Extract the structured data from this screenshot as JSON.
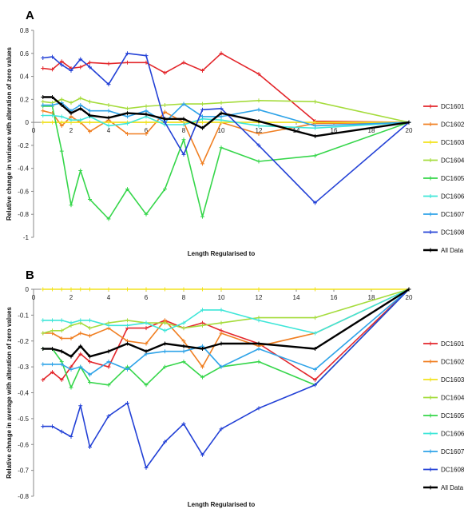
{
  "series_colors": {
    "DC1601": "#e3262b",
    "DC1602": "#f07f22",
    "DC1603": "#f2e21b",
    "DC1604": "#a5dc3c",
    "DC1605": "#35d64a",
    "DC1606": "#3ee6d8",
    "DC1607": "#2ea3e8",
    "DC1608": "#2341d6",
    "All Data": "#000000"
  },
  "chart_data": [
    {
      "panel": "A",
      "type": "line",
      "xlabel": "Length Regularised to",
      "ylabel": "Relative change in variance with alteration of zero values",
      "xlim": [
        0,
        20
      ],
      "ylim": [
        -1,
        0.8
      ],
      "xticks": [
        0,
        2,
        4,
        6,
        8,
        10,
        12,
        14,
        16,
        18,
        20
      ],
      "yticks": [
        -1,
        -0.8,
        -0.6,
        -0.4,
        -0.2,
        0,
        0.2,
        0.4,
        0.6,
        0.8
      ],
      "legend_position": "right",
      "series": [
        {
          "name": "DC1601",
          "x": [
            0.5,
            1,
            1.5,
            2,
            2.5,
            3,
            4,
            5,
            6,
            7,
            8,
            9,
            10,
            12,
            15,
            20
          ],
          "y": [
            0.47,
            0.46,
            0.53,
            0.47,
            0.48,
            0.52,
            0.51,
            0.52,
            0.52,
            0.43,
            0.52,
            0.45,
            0.6,
            0.42,
            0.01,
            0.0
          ]
        },
        {
          "name": "DC1602",
          "x": [
            0.5,
            1,
            1.5,
            2,
            2.5,
            3,
            4,
            5,
            6,
            7,
            8,
            9,
            10,
            12,
            15,
            20
          ],
          "y": [
            0.1,
            0.08,
            -0.03,
            0.05,
            0.0,
            -0.08,
            0.02,
            -0.1,
            -0.1,
            0.09,
            0.0,
            -0.36,
            0.0,
            -0.1,
            -0.01,
            0.0
          ]
        },
        {
          "name": "DC1603",
          "x": [
            0.5,
            1,
            1.5,
            2,
            2.5,
            3,
            4,
            5,
            6,
            7,
            8,
            9,
            10,
            12,
            15,
            20
          ],
          "y": [
            0.0,
            0.0,
            0.0,
            0.0,
            0.0,
            0.0,
            0.0,
            0.0,
            0.0,
            0.0,
            0.0,
            0.0,
            0.0,
            0.0,
            0.0,
            0.0
          ]
        },
        {
          "name": "DC1604",
          "x": [
            0.5,
            1,
            1.5,
            2,
            2.5,
            3,
            4,
            5,
            6,
            7,
            8,
            9,
            10,
            12,
            15,
            20
          ],
          "y": [
            0.18,
            0.17,
            0.2,
            0.17,
            0.21,
            0.18,
            0.15,
            0.12,
            0.14,
            0.15,
            0.16,
            0.16,
            0.17,
            0.19,
            0.18,
            0.0
          ]
        },
        {
          "name": "DC1605",
          "x": [
            0.5,
            1,
            1.5,
            2,
            2.5,
            3,
            4,
            5,
            6,
            7,
            8,
            9,
            10,
            12,
            15,
            20
          ],
          "y": [
            0.14,
            0.14,
            -0.25,
            -0.72,
            -0.42,
            -0.67,
            -0.84,
            -0.58,
            -0.8,
            -0.58,
            -0.15,
            -0.82,
            -0.22,
            -0.34,
            -0.29,
            0.0
          ]
        },
        {
          "name": "DC1606",
          "x": [
            0.5,
            1,
            1.5,
            2,
            2.5,
            3,
            4,
            5,
            6,
            7,
            8,
            9,
            10,
            12,
            15,
            20
          ],
          "y": [
            0.06,
            0.06,
            0.05,
            0.02,
            0.02,
            0.05,
            -0.03,
            -0.01,
            0.05,
            -0.02,
            -0.02,
            0.03,
            0.02,
            -0.03,
            -0.05,
            0.0
          ]
        },
        {
          "name": "DC1607",
          "x": [
            0.5,
            1,
            1.5,
            2,
            2.5,
            3,
            4,
            5,
            6,
            7,
            8,
            9,
            10,
            12,
            15,
            20
          ],
          "y": [
            0.15,
            0.15,
            0.17,
            0.1,
            0.15,
            0.1,
            0.1,
            0.05,
            0.1,
            0.0,
            0.16,
            0.05,
            0.05,
            0.11,
            -0.03,
            0.0
          ]
        },
        {
          "name": "DC1608",
          "x": [
            0.5,
            1,
            1.5,
            2,
            2.5,
            3,
            4,
            5,
            6,
            7,
            8,
            9,
            10,
            12,
            15,
            20
          ],
          "y": [
            0.56,
            0.57,
            0.5,
            0.45,
            0.55,
            0.48,
            0.33,
            0.6,
            0.58,
            0.0,
            -0.28,
            0.11,
            0.12,
            -0.2,
            -0.7,
            0.0
          ]
        },
        {
          "name": "All Data",
          "x": [
            0.5,
            1,
            1.5,
            2,
            2.5,
            3,
            4,
            5,
            6,
            7,
            8,
            9,
            10,
            12,
            15,
            20
          ],
          "y": [
            0.22,
            0.22,
            0.15,
            0.08,
            0.12,
            0.06,
            0.04,
            0.08,
            0.07,
            0.03,
            0.03,
            -0.05,
            0.08,
            0.01,
            -0.12,
            0.0
          ]
        }
      ]
    },
    {
      "panel": "B",
      "type": "line",
      "xlabel": "Length Regularised to",
      "ylabel": "Relative chnage in average with alteration of zero values",
      "xlim": [
        0,
        20
      ],
      "ylim": [
        -0.8,
        0
      ],
      "xticks": [
        0,
        2,
        4,
        6,
        8,
        10,
        12,
        14,
        16,
        18,
        20
      ],
      "yticks": [
        -0.8,
        -0.7,
        -0.6,
        -0.5,
        -0.4,
        -0.3,
        -0.2,
        -0.1,
        0
      ],
      "legend_position": "right",
      "series": [
        {
          "name": "DC1601",
          "x": [
            0.5,
            1,
            1.5,
            2,
            2.5,
            3,
            4,
            5,
            6,
            7,
            8,
            9,
            10,
            12,
            15,
            20
          ],
          "y": [
            -0.35,
            -0.32,
            -0.35,
            -0.3,
            -0.25,
            -0.28,
            -0.3,
            -0.15,
            -0.15,
            -0.12,
            -0.15,
            -0.13,
            -0.16,
            -0.21,
            -0.35,
            0.0
          ]
        },
        {
          "name": "DC1602",
          "x": [
            0.5,
            1,
            1.5,
            2,
            2.5,
            3,
            4,
            5,
            6,
            7,
            8,
            9,
            10,
            12,
            15,
            20
          ],
          "y": [
            -0.17,
            -0.17,
            -0.19,
            -0.19,
            -0.17,
            -0.18,
            -0.15,
            -0.2,
            -0.21,
            -0.12,
            -0.2,
            -0.3,
            -0.17,
            -0.22,
            -0.17,
            0.0
          ]
        },
        {
          "name": "DC1603",
          "x": [
            0.5,
            1,
            1.5,
            2,
            2.5,
            3,
            4,
            5,
            6,
            7,
            8,
            9,
            10,
            12,
            15,
            20
          ],
          "y": [
            0.0,
            0.0,
            0.0,
            0.0,
            0.0,
            0.0,
            0.0,
            0.0,
            0.0,
            0.0,
            0.0,
            0.0,
            0.0,
            0.0,
            0.0,
            0.0
          ]
        },
        {
          "name": "DC1604",
          "x": [
            0.5,
            1,
            1.5,
            2,
            2.5,
            3,
            4,
            5,
            6,
            7,
            8,
            9,
            10,
            12,
            15,
            20
          ],
          "y": [
            -0.17,
            -0.16,
            -0.16,
            -0.14,
            -0.13,
            -0.15,
            -0.13,
            -0.12,
            -0.13,
            -0.13,
            -0.15,
            -0.14,
            -0.13,
            -0.11,
            -0.11,
            0.0
          ]
        },
        {
          "name": "DC1605",
          "x": [
            0.5,
            1,
            1.5,
            2,
            2.5,
            3,
            4,
            5,
            6,
            7,
            8,
            9,
            10,
            12,
            15,
            20
          ],
          "y": [
            -0.23,
            -0.23,
            -0.28,
            -0.38,
            -0.3,
            -0.36,
            -0.37,
            -0.3,
            -0.37,
            -0.3,
            -0.28,
            -0.34,
            -0.3,
            -0.28,
            -0.37,
            0.0
          ]
        },
        {
          "name": "DC1606",
          "x": [
            0.5,
            1,
            1.5,
            2,
            2.5,
            3,
            4,
            5,
            6,
            7,
            8,
            9,
            10,
            12,
            15,
            20
          ],
          "y": [
            -0.12,
            -0.12,
            -0.12,
            -0.13,
            -0.12,
            -0.12,
            -0.14,
            -0.14,
            -0.13,
            -0.16,
            -0.13,
            -0.08,
            -0.08,
            -0.12,
            -0.17,
            0.0
          ]
        },
        {
          "name": "DC1607",
          "x": [
            0.5,
            1,
            1.5,
            2,
            2.5,
            3,
            4,
            5,
            6,
            7,
            8,
            9,
            10,
            12,
            15,
            20
          ],
          "y": [
            -0.29,
            -0.29,
            -0.29,
            -0.31,
            -0.3,
            -0.33,
            -0.28,
            -0.31,
            -0.25,
            -0.24,
            -0.24,
            -0.22,
            -0.3,
            -0.23,
            -0.31,
            0.0
          ]
        },
        {
          "name": "DC1608",
          "x": [
            0.5,
            1,
            1.5,
            2,
            2.5,
            3,
            4,
            5,
            6,
            7,
            8,
            9,
            10,
            12,
            15,
            20
          ],
          "y": [
            -0.53,
            -0.53,
            -0.55,
            -0.57,
            -0.45,
            -0.61,
            -0.49,
            -0.44,
            -0.69,
            -0.59,
            -0.52,
            -0.64,
            -0.54,
            -0.46,
            -0.37,
            0.0
          ]
        },
        {
          "name": "All Data",
          "x": [
            0.5,
            1,
            1.5,
            2,
            2.5,
            3,
            4,
            5,
            6,
            7,
            8,
            9,
            10,
            12,
            15,
            20
          ],
          "y": [
            -0.23,
            -0.23,
            -0.24,
            -0.26,
            -0.22,
            -0.26,
            -0.24,
            -0.21,
            -0.24,
            -0.21,
            -0.22,
            -0.23,
            -0.21,
            -0.21,
            -0.23,
            0.0
          ]
        }
      ]
    }
  ]
}
